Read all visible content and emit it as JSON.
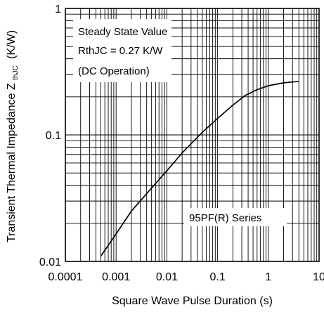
{
  "chart_data": {
    "type": "line",
    "xlabel": "Square Wave Pulse Duration (s)",
    "ylabel_main": "Transient Thermal Impedance Z",
    "ylabel_sub": "thJC",
    "ylabel_unit": "(K/W)",
    "x_scale": "log",
    "y_scale": "log",
    "xlim": [
      0.0001,
      10
    ],
    "ylim": [
      0.01,
      1
    ],
    "x_tick_labels": [
      "0.0001",
      "0.001",
      "0.01",
      "0.1",
      "1",
      "10"
    ],
    "y_tick_labels": [
      "0.01",
      "0.1",
      "1"
    ],
    "grid": true,
    "annotations": {
      "steady_state_lines": [
        "Steady State Value",
        "RthJC = 0.27 K/W",
        "(DC Operation)"
      ],
      "series_label": "95PF(R) Series"
    },
    "series": [
      {
        "x": [
          0.0005,
          0.001,
          0.002,
          0.005,
          0.01,
          0.02,
          0.05,
          0.1,
          0.2,
          0.35,
          0.6,
          1.0,
          2.0,
          4.0
        ],
        "y": [
          0.011,
          0.0165,
          0.025,
          0.038,
          0.052,
          0.072,
          0.105,
          0.135,
          0.172,
          0.205,
          0.228,
          0.245,
          0.258,
          0.265
        ]
      }
    ]
  }
}
